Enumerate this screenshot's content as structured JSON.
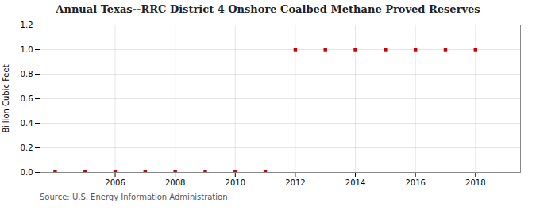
{
  "chart_data": {
    "type": "scatter",
    "title": "Annual Texas--RRC District 4 Onshore Coalbed Methane Proved Reserves",
    "ylabel": "Billion Cubic Feet",
    "annotations": [
      "Source: U.S. Energy Information Administration"
    ],
    "x": [
      2004,
      2005,
      2006,
      2007,
      2008,
      2009,
      2010,
      2011,
      2012,
      2013,
      2014,
      2015,
      2016,
      2017,
      2018
    ],
    "values": [
      0.003,
      0.003,
      0.003,
      0.003,
      0.003,
      0.003,
      0.003,
      0.003,
      1.0,
      1.0,
      1.0,
      1.0,
      1.0,
      1.0,
      1.0
    ],
    "color": "#cc0000",
    "marker": "square",
    "grid": true,
    "xlim": [
      2003.5,
      2019.5
    ],
    "ylim": [
      0.0,
      1.2
    ],
    "xticks": [
      2006,
      2008,
      2010,
      2012,
      2014,
      2016,
      2018
    ],
    "yticks": [
      {
        "value": 0,
        "label": "0.0"
      },
      0.2,
      0.4,
      0.6,
      0.8,
      {
        "value": 1,
        "label": "1.0"
      },
      1.2
    ]
  }
}
